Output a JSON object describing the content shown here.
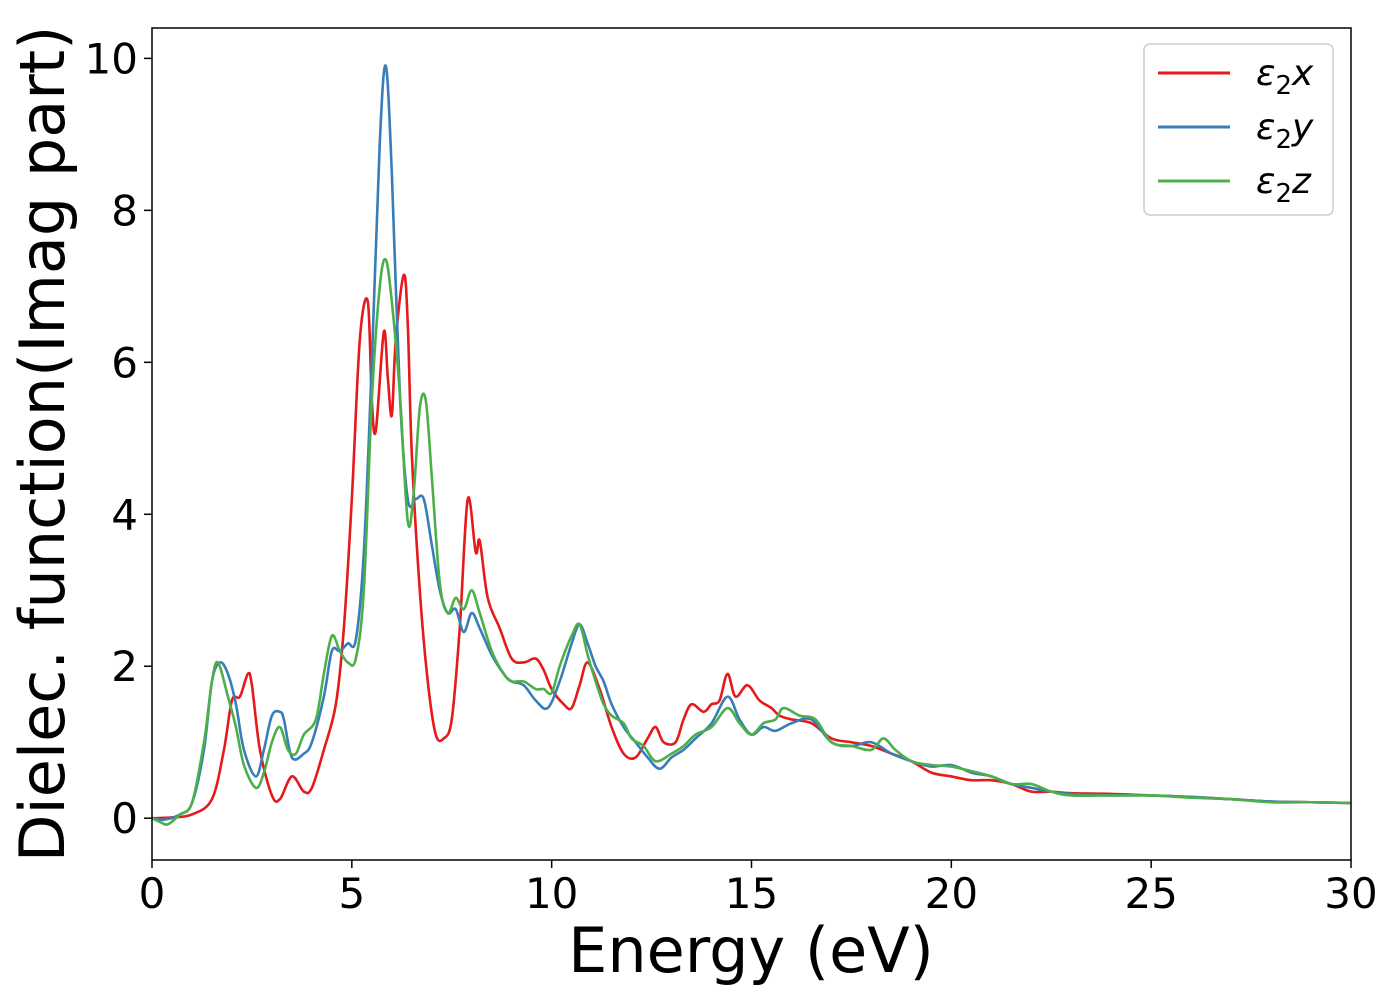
{
  "chart_data": {
    "type": "line",
    "xlabel": "Energy (eV)",
    "ylabel": "Dielec. function(Imag part)",
    "xlim": [
      0,
      30
    ],
    "ylim": [
      -0.55,
      10.4
    ],
    "xticks": [
      0,
      5,
      10,
      15,
      20,
      25,
      30
    ],
    "yticks": [
      0,
      2,
      4,
      6,
      8,
      10
    ],
    "grid": false,
    "legend_position": "top-right",
    "series": [
      {
        "name": "ε₂x",
        "label_base": "ε",
        "label_sub": "2",
        "label_axis": "x",
        "color": "#e41a1c",
        "points": [
          [
            0,
            0
          ],
          [
            0.5,
            0.01
          ],
          [
            1.0,
            0.05
          ],
          [
            1.5,
            0.25
          ],
          [
            1.8,
            0.9
          ],
          [
            2.0,
            1.55
          ],
          [
            2.2,
            1.6
          ],
          [
            2.4,
            1.9
          ],
          [
            2.5,
            1.75
          ],
          [
            2.7,
            0.9
          ],
          [
            3.0,
            0.3
          ],
          [
            3.2,
            0.25
          ],
          [
            3.5,
            0.55
          ],
          [
            3.8,
            0.35
          ],
          [
            4.0,
            0.4
          ],
          [
            4.3,
            0.9
          ],
          [
            4.6,
            1.5
          ],
          [
            4.8,
            2.5
          ],
          [
            5.0,
            4.2
          ],
          [
            5.2,
            6.3
          ],
          [
            5.4,
            6.8
          ],
          [
            5.5,
            5.5
          ],
          [
            5.6,
            5.1
          ],
          [
            5.8,
            6.4
          ],
          [
            5.9,
            5.8
          ],
          [
            6.0,
            5.3
          ],
          [
            6.1,
            6.3
          ],
          [
            6.3,
            7.15
          ],
          [
            6.4,
            6.5
          ],
          [
            6.5,
            4.8
          ],
          [
            6.7,
            3.0
          ],
          [
            6.9,
            1.8
          ],
          [
            7.1,
            1.1
          ],
          [
            7.3,
            1.05
          ],
          [
            7.5,
            1.3
          ],
          [
            7.7,
            2.5
          ],
          [
            7.9,
            4.2
          ],
          [
            8.1,
            3.5
          ],
          [
            8.2,
            3.65
          ],
          [
            8.4,
            2.9
          ],
          [
            8.7,
            2.5
          ],
          [
            9.0,
            2.1
          ],
          [
            9.3,
            2.05
          ],
          [
            9.6,
            2.1
          ],
          [
            9.8,
            1.95
          ],
          [
            10.0,
            1.7
          ],
          [
            10.3,
            1.5
          ],
          [
            10.5,
            1.45
          ],
          [
            10.7,
            1.75
          ],
          [
            10.9,
            2.05
          ],
          [
            11.2,
            1.7
          ],
          [
            11.5,
            1.2
          ],
          [
            11.8,
            0.85
          ],
          [
            12.1,
            0.8
          ],
          [
            12.4,
            1.05
          ],
          [
            12.6,
            1.2
          ],
          [
            12.8,
            1.0
          ],
          [
            13.1,
            1.0
          ],
          [
            13.3,
            1.3
          ],
          [
            13.5,
            1.5
          ],
          [
            13.8,
            1.4
          ],
          [
            14.0,
            1.5
          ],
          [
            14.2,
            1.55
          ],
          [
            14.4,
            1.9
          ],
          [
            14.6,
            1.6
          ],
          [
            14.9,
            1.75
          ],
          [
            15.2,
            1.55
          ],
          [
            15.5,
            1.45
          ],
          [
            15.7,
            1.35
          ],
          [
            16.0,
            1.3
          ],
          [
            16.5,
            1.25
          ],
          [
            17.0,
            1.05
          ],
          [
            17.5,
            1.0
          ],
          [
            18.0,
            0.95
          ],
          [
            18.5,
            0.85
          ],
          [
            19.0,
            0.75
          ],
          [
            19.5,
            0.6
          ],
          [
            20.0,
            0.55
          ],
          [
            20.5,
            0.5
          ],
          [
            21.0,
            0.5
          ],
          [
            21.5,
            0.45
          ],
          [
            22.0,
            0.35
          ],
          [
            22.5,
            0.35
          ],
          [
            23.0,
            0.33
          ],
          [
            24.0,
            0.32
          ],
          [
            25.0,
            0.3
          ],
          [
            26.0,
            0.28
          ],
          [
            27.0,
            0.25
          ],
          [
            28.0,
            0.22
          ],
          [
            29.0,
            0.21
          ],
          [
            30.0,
            0.2
          ]
        ]
      },
      {
        "name": "ε₂y",
        "label_base": "ε",
        "label_sub": "2",
        "label_axis": "y",
        "color": "#377eb8",
        "points": [
          [
            0,
            0
          ],
          [
            0.3,
            -0.02
          ],
          [
            0.7,
            0.05
          ],
          [
            1.0,
            0.2
          ],
          [
            1.3,
            0.9
          ],
          [
            1.5,
            1.8
          ],
          [
            1.7,
            2.05
          ],
          [
            1.9,
            1.9
          ],
          [
            2.1,
            1.5
          ],
          [
            2.3,
            0.9
          ],
          [
            2.6,
            0.55
          ],
          [
            2.8,
            0.9
          ],
          [
            3.0,
            1.35
          ],
          [
            3.2,
            1.4
          ],
          [
            3.3,
            1.3
          ],
          [
            3.5,
            0.8
          ],
          [
            3.8,
            0.85
          ],
          [
            4.0,
            1.0
          ],
          [
            4.3,
            1.6
          ],
          [
            4.5,
            2.2
          ],
          [
            4.7,
            2.2
          ],
          [
            4.9,
            2.3
          ],
          [
            5.1,
            2.35
          ],
          [
            5.3,
            3.5
          ],
          [
            5.5,
            6.0
          ],
          [
            5.7,
            8.9
          ],
          [
            5.85,
            9.9
          ],
          [
            6.0,
            8.5
          ],
          [
            6.2,
            5.6
          ],
          [
            6.4,
            4.2
          ],
          [
            6.6,
            4.2
          ],
          [
            6.8,
            4.2
          ],
          [
            7.0,
            3.6
          ],
          [
            7.2,
            3.0
          ],
          [
            7.4,
            2.7
          ],
          [
            7.6,
            2.75
          ],
          [
            7.8,
            2.45
          ],
          [
            8.0,
            2.7
          ],
          [
            8.2,
            2.5
          ],
          [
            8.5,
            2.15
          ],
          [
            8.8,
            1.9
          ],
          [
            9.0,
            1.8
          ],
          [
            9.3,
            1.75
          ],
          [
            9.6,
            1.55
          ],
          [
            9.9,
            1.45
          ],
          [
            10.2,
            1.8
          ],
          [
            10.5,
            2.3
          ],
          [
            10.7,
            2.55
          ],
          [
            10.9,
            2.3
          ],
          [
            11.1,
            2.0
          ],
          [
            11.3,
            1.8
          ],
          [
            11.5,
            1.5
          ],
          [
            11.8,
            1.2
          ],
          [
            12.1,
            1.0
          ],
          [
            12.4,
            0.8
          ],
          [
            12.7,
            0.65
          ],
          [
            13.0,
            0.8
          ],
          [
            13.3,
            0.9
          ],
          [
            13.6,
            1.05
          ],
          [
            14.0,
            1.25
          ],
          [
            14.4,
            1.6
          ],
          [
            14.7,
            1.3
          ],
          [
            15.0,
            1.1
          ],
          [
            15.3,
            1.2
          ],
          [
            15.6,
            1.15
          ],
          [
            16.0,
            1.25
          ],
          [
            16.5,
            1.3
          ],
          [
            17.0,
            1.0
          ],
          [
            17.5,
            0.95
          ],
          [
            18.0,
            1.0
          ],
          [
            18.5,
            0.85
          ],
          [
            19.0,
            0.75
          ],
          [
            19.5,
            0.68
          ],
          [
            20.0,
            0.7
          ],
          [
            20.5,
            0.6
          ],
          [
            21.0,
            0.55
          ],
          [
            21.5,
            0.45
          ],
          [
            22.0,
            0.4
          ],
          [
            22.5,
            0.35
          ],
          [
            23.0,
            0.32
          ],
          [
            24.0,
            0.3
          ],
          [
            25.0,
            0.3
          ],
          [
            26.0,
            0.28
          ],
          [
            27.0,
            0.25
          ],
          [
            28.0,
            0.22
          ],
          [
            29.0,
            0.21
          ],
          [
            30.0,
            0.2
          ]
        ]
      },
      {
        "name": "ε₂z",
        "label_base": "ε",
        "label_sub": "2",
        "label_axis": "z",
        "color": "#4daf4a",
        "points": [
          [
            0,
            0
          ],
          [
            0.2,
            -0.05
          ],
          [
            0.4,
            -0.08
          ],
          [
            0.7,
            0.05
          ],
          [
            1.0,
            0.2
          ],
          [
            1.3,
            1.0
          ],
          [
            1.5,
            1.8
          ],
          [
            1.65,
            2.05
          ],
          [
            1.9,
            1.6
          ],
          [
            2.1,
            1.2
          ],
          [
            2.3,
            0.7
          ],
          [
            2.6,
            0.4
          ],
          [
            2.8,
            0.6
          ],
          [
            3.0,
            1.0
          ],
          [
            3.2,
            1.2
          ],
          [
            3.4,
            0.9
          ],
          [
            3.6,
            0.85
          ],
          [
            3.8,
            1.1
          ],
          [
            4.1,
            1.3
          ],
          [
            4.3,
            1.9
          ],
          [
            4.5,
            2.4
          ],
          [
            4.7,
            2.2
          ],
          [
            4.9,
            2.05
          ],
          [
            5.1,
            2.1
          ],
          [
            5.3,
            3.0
          ],
          [
            5.5,
            5.5
          ],
          [
            5.7,
            7.0
          ],
          [
            5.85,
            7.35
          ],
          [
            6.0,
            6.8
          ],
          [
            6.2,
            5.6
          ],
          [
            6.4,
            3.9
          ],
          [
            6.55,
            4.3
          ],
          [
            6.7,
            5.4
          ],
          [
            6.85,
            5.5
          ],
          [
            7.0,
            4.5
          ],
          [
            7.2,
            3.1
          ],
          [
            7.4,
            2.7
          ],
          [
            7.6,
            2.9
          ],
          [
            7.8,
            2.75
          ],
          [
            8.0,
            3.0
          ],
          [
            8.2,
            2.7
          ],
          [
            8.5,
            2.2
          ],
          [
            8.8,
            1.9
          ],
          [
            9.0,
            1.8
          ],
          [
            9.3,
            1.8
          ],
          [
            9.6,
            1.7
          ],
          [
            9.8,
            1.7
          ],
          [
            10.0,
            1.65
          ],
          [
            10.2,
            2.0
          ],
          [
            10.5,
            2.4
          ],
          [
            10.7,
            2.55
          ],
          [
            10.9,
            2.15
          ],
          [
            11.1,
            1.8
          ],
          [
            11.3,
            1.5
          ],
          [
            11.5,
            1.35
          ],
          [
            11.8,
            1.25
          ],
          [
            12.0,
            1.05
          ],
          [
            12.3,
            0.95
          ],
          [
            12.6,
            0.75
          ],
          [
            13.0,
            0.85
          ],
          [
            13.3,
            0.95
          ],
          [
            13.6,
            1.1
          ],
          [
            14.0,
            1.2
          ],
          [
            14.4,
            1.45
          ],
          [
            14.7,
            1.25
          ],
          [
            15.0,
            1.1
          ],
          [
            15.3,
            1.25
          ],
          [
            15.6,
            1.3
          ],
          [
            15.8,
            1.45
          ],
          [
            16.2,
            1.35
          ],
          [
            16.6,
            1.3
          ],
          [
            17.0,
            1.0
          ],
          [
            17.5,
            0.95
          ],
          [
            18.0,
            0.9
          ],
          [
            18.3,
            1.05
          ],
          [
            18.6,
            0.9
          ],
          [
            19.0,
            0.75
          ],
          [
            19.5,
            0.7
          ],
          [
            20.0,
            0.68
          ],
          [
            20.5,
            0.62
          ],
          [
            21.0,
            0.55
          ],
          [
            21.5,
            0.45
          ],
          [
            22.0,
            0.45
          ],
          [
            22.5,
            0.35
          ],
          [
            23.0,
            0.3
          ],
          [
            24.0,
            0.3
          ],
          [
            25.0,
            0.3
          ],
          [
            26.0,
            0.27
          ],
          [
            27.0,
            0.25
          ],
          [
            28.0,
            0.21
          ],
          [
            29.0,
            0.21
          ],
          [
            30.0,
            0.2
          ]
        ]
      }
    ]
  }
}
